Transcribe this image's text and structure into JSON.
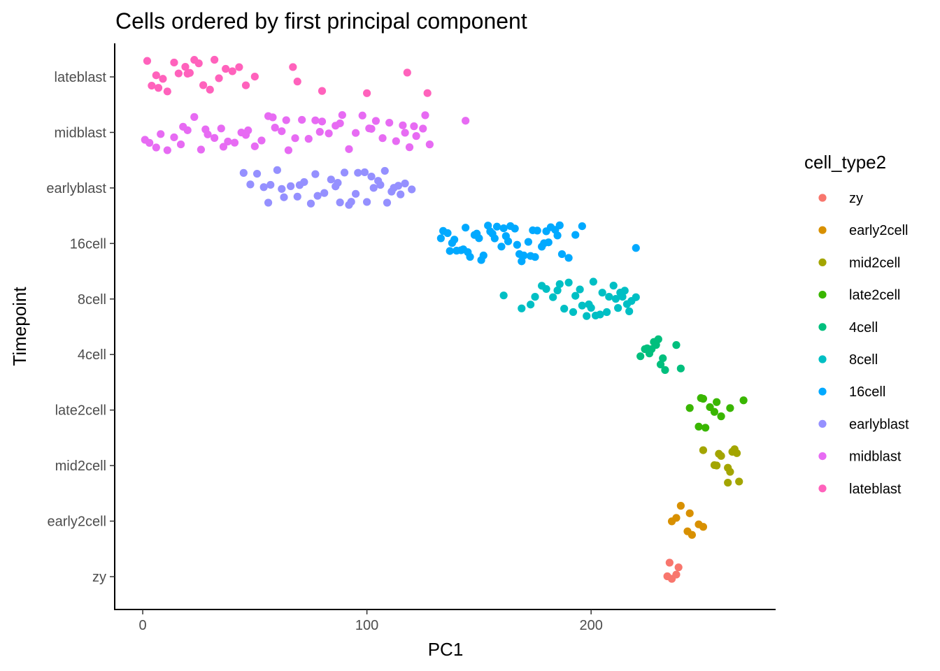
{
  "chart_data": {
    "type": "scatter",
    "title": "Cells ordered by first principal component",
    "xlabel": "PC1",
    "ylabel": "Timepoint",
    "xlim": [
      -12.5,
      282
    ],
    "x_ticks": [
      0,
      100,
      200
    ],
    "y_categories": [
      "zy",
      "early2cell",
      "mid2cell",
      "late2cell",
      "4cell",
      "8cell",
      "16cell",
      "earlyblast",
      "midblast",
      "lateblast"
    ],
    "grid": false,
    "legend_position": "right",
    "legend_title": "cell_type2",
    "series": [
      {
        "name": "zy",
        "color": "#F8766D",
        "y": "zy",
        "x": [
          234,
          236,
          235,
          239,
          238
        ],
        "jitter": [
          -0.0,
          0.0,
          0.0,
          0.0,
          0.0
        ]
      },
      {
        "name": "early2cell",
        "color": "#D89000",
        "y": "early2cell",
        "x": [
          236,
          240,
          245,
          248,
          238,
          244,
          243,
          250
        ],
        "jitter": [
          0,
          0,
          0,
          0,
          0,
          0,
          0,
          0
        ]
      },
      {
        "name": "mid2cell",
        "color": "#A3A500",
        "y": "mid2cell",
        "x": [
          250,
          256,
          258,
          262,
          265,
          261,
          255,
          257,
          264,
          266,
          261,
          263
        ],
        "jitter": [
          0,
          0,
          0,
          0,
          0,
          0,
          0,
          0,
          0,
          0,
          0,
          0
        ]
      },
      {
        "name": "late2cell",
        "color": "#39B600",
        "y": "late2cell",
        "x": [
          244,
          248,
          250,
          253,
          255,
          258,
          256,
          249,
          251,
          262,
          268
        ],
        "jitter": [
          0,
          0,
          0,
          0,
          0,
          0,
          0,
          0,
          0,
          0,
          0
        ]
      },
      {
        "name": "4cell",
        "color": "#00BF7D",
        "y": "4cell",
        "x": [
          222,
          225,
          228,
          231,
          224,
          227,
          230,
          233,
          238,
          240,
          226,
          229,
          232
        ],
        "jitter": [
          0,
          0,
          0,
          0,
          0,
          0,
          0,
          0,
          0,
          0,
          0,
          0,
          0
        ]
      },
      {
        "name": "8cell",
        "color": "#00BFC4",
        "y": "8cell",
        "x": [
          161,
          169,
          173,
          178,
          180,
          183,
          186,
          190,
          193,
          196,
          199,
          202,
          205,
          208,
          211,
          214,
          217,
          220,
          175,
          185,
          195,
          200,
          210,
          215,
          188,
          192,
          198,
          204,
          207,
          212,
          216,
          218,
          201,
          213
        ],
        "jitter": [
          0,
          0,
          0,
          0,
          0,
          0,
          0,
          0,
          0,
          0,
          0,
          0,
          0,
          0,
          0,
          0,
          0,
          0,
          0,
          0,
          0,
          0,
          0,
          0,
          0,
          0,
          0,
          0,
          0,
          0,
          0,
          0,
          0,
          0
        ]
      },
      {
        "name": "16cell",
        "color": "#00A9FF",
        "y": "16cell",
        "x": [
          133,
          136,
          139,
          142,
          145,
          148,
          151,
          154,
          157,
          160,
          163,
          166,
          169,
          172,
          175,
          178,
          181,
          184,
          187,
          190,
          193,
          196,
          134,
          137,
          140,
          143,
          146,
          149,
          152,
          155,
          158,
          161,
          164,
          167,
          170,
          173,
          176,
          179,
          182,
          185,
          138,
          144,
          150,
          156,
          162,
          168,
          174,
          180,
          186,
          220
        ],
        "jitter": [
          0,
          0,
          0,
          0,
          0,
          0,
          0,
          0,
          0,
          0,
          0,
          0,
          0,
          0,
          0,
          0,
          0,
          0,
          0,
          0,
          0,
          0,
          0,
          0,
          0,
          0,
          0,
          0,
          0,
          0,
          0,
          0,
          0,
          0,
          0,
          0,
          0,
          0,
          0,
          0,
          0,
          0,
          0,
          0,
          0,
          0,
          0,
          0,
          0,
          0
        ]
      },
      {
        "name": "earlyblast",
        "color": "#9590FF",
        "y": "earlyblast",
        "x": [
          45,
          48,
          51,
          54,
          57,
          60,
          63,
          66,
          69,
          72,
          75,
          78,
          81,
          84,
          87,
          90,
          93,
          96,
          99,
          102,
          105,
          108,
          111,
          114,
          117,
          120,
          56,
          62,
          70,
          77,
          88,
          95,
          103,
          109,
          115,
          86,
          92,
          100,
          106,
          112
        ],
        "jitter": [
          0,
          0,
          0,
          0,
          0,
          0,
          0,
          0,
          0,
          0,
          0,
          0,
          0,
          0,
          0,
          0,
          0,
          0,
          0,
          0,
          0,
          0,
          0,
          0,
          0,
          0,
          0,
          0,
          0,
          0,
          0,
          0,
          0,
          0,
          0,
          0,
          0,
          0,
          0,
          0
        ]
      },
      {
        "name": "midblast",
        "color": "#E76BF3",
        "y": "midblast",
        "x": [
          1,
          3,
          6,
          8,
          11,
          14,
          17,
          20,
          23,
          26,
          29,
          32,
          35,
          38,
          41,
          44,
          47,
          50,
          53,
          56,
          59,
          62,
          65,
          68,
          71,
          74,
          77,
          80,
          83,
          86,
          89,
          92,
          95,
          98,
          101,
          104,
          107,
          110,
          113,
          116,
          119,
          122,
          125,
          128,
          144,
          18,
          28,
          36,
          46,
          58,
          64,
          79,
          88,
          102,
          117,
          121,
          126
        ],
        "jitter": [
          0,
          0,
          0,
          0,
          0,
          0,
          0,
          0,
          0,
          0,
          0,
          0,
          0,
          0,
          0,
          0,
          0,
          0,
          0,
          0,
          0,
          0,
          0,
          0,
          0,
          0,
          0,
          0,
          0,
          0,
          0,
          0,
          0,
          0,
          0,
          0,
          0,
          0,
          0,
          0,
          0,
          0,
          0,
          0,
          0,
          0,
          0,
          0,
          0,
          0,
          0,
          0,
          0,
          0,
          0,
          0,
          0
        ]
      },
      {
        "name": "lateblast",
        "color": "#FF62BC",
        "y": "lateblast",
        "x": [
          2,
          4,
          6,
          9,
          11,
          14,
          16,
          19,
          21,
          23,
          25,
          27,
          30,
          32,
          34,
          37,
          40,
          43,
          46,
          50,
          67,
          69,
          80,
          100,
          118,
          127,
          7,
          20
        ],
        "jitter": [
          0,
          0,
          0,
          0,
          0,
          0,
          0,
          0,
          0,
          0,
          0,
          0,
          0,
          0,
          0,
          0,
          0,
          0,
          0,
          0,
          0,
          0,
          0,
          0,
          0,
          0,
          0,
          0
        ]
      }
    ]
  }
}
